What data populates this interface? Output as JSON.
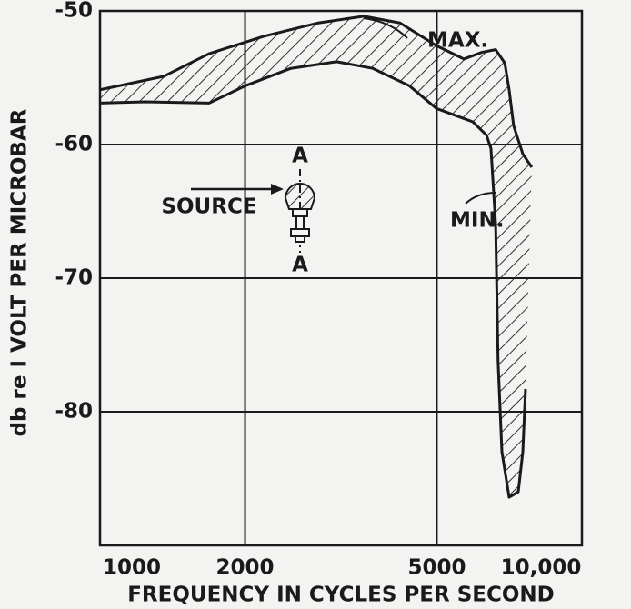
{
  "chart_data": {
    "type": "line",
    "x_label": "FREQUENCY IN CYCLES PER SECOND",
    "y_label": "db re I VOLT PER MICROBAR",
    "xscale": "log",
    "grid": true,
    "xlim": [
      1000,
      10000
    ],
    "xticks": [
      1000,
      2000,
      5000,
      {
        "value": 10000,
        "label": "10,000"
      }
    ],
    "ylim": [
      -90,
      -50
    ],
    "yticks": [
      -50,
      -60,
      -70,
      -80
    ],
    "series": [
      {
        "name": "MAX.",
        "color": "#1a1a1a",
        "x": [
          1000,
          1355,
          1684,
          2187,
          2838,
          3526,
          4194,
          4990,
          5689,
          6198,
          6622,
          6918,
          7063,
          7217,
          7540,
          7870
        ],
        "values": [
          -55.9,
          -54.9,
          -53.2,
          -51.9,
          -50.9,
          -50.4,
          -50.9,
          -52.6,
          -53.6,
          -53.1,
          -52.9,
          -53.9,
          -55.9,
          -58.6,
          -60.7,
          -61.7
        ]
      },
      {
        "name": "MIN.",
        "color": "#1a1a1a",
        "x": [
          1000,
          1242,
          1684,
          2004,
          2489,
          3097,
          3681,
          4383,
          4990,
          5937,
          6339,
          6475,
          6622,
          6699,
          6823,
          7063,
          7378,
          7540,
          7638
        ],
        "values": [
          -56.9,
          -56.8,
          -56.9,
          -55.6,
          -54.3,
          -53.8,
          -54.3,
          -55.6,
          -57.3,
          -58.3,
          -59.3,
          -60.3,
          -66.0,
          -76.2,
          -83.0,
          -86.4,
          -86.0,
          -83.0,
          -78.3
        ]
      }
    ],
    "annotations": [
      "SOURCE",
      "A",
      "A"
    ]
  }
}
